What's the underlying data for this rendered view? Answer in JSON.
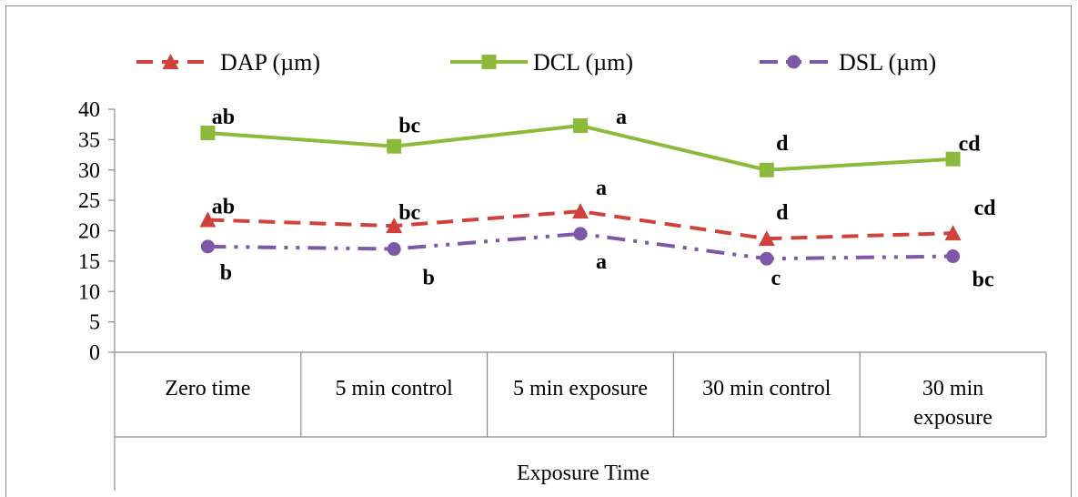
{
  "colors": {
    "dap": "#d0413b",
    "dcl": "#8cbb3c",
    "dsl": "#7e58a8",
    "axis": "#8c8c8c"
  },
  "chart_data": {
    "type": "line",
    "categories": [
      "Zero time",
      "5 min control",
      "5 min exposure",
      "30 min control",
      "30 min exposure"
    ],
    "category_lines": [
      [
        "Zero time"
      ],
      [
        "5 min control"
      ],
      [
        "5 min exposure"
      ],
      [
        "30 min control"
      ],
      [
        "30 min",
        "exposure"
      ]
    ],
    "xlabel": "Exposure Time",
    "ylabel": "",
    "ylim": [
      0,
      40
    ],
    "yticks": [
      0,
      5,
      10,
      15,
      20,
      25,
      30,
      35,
      40
    ],
    "grid": false,
    "legend_position": "top",
    "series": [
      {
        "key": "dap",
        "name": "DAP (µm)",
        "marker": "triangle",
        "line_style": "dashed",
        "values": [
          21.8,
          20.8,
          23.2,
          18.7,
          19.6
        ],
        "labels": [
          "ab",
          "bc",
          "a",
          "d",
          "cd"
        ]
      },
      {
        "key": "dcl",
        "name": "DCL (µm)",
        "marker": "square",
        "line_style": "solid",
        "values": [
          36.1,
          33.9,
          37.3,
          30.0,
          31.8
        ],
        "labels": [
          "ab",
          "bc",
          "a",
          "d",
          "cd"
        ]
      },
      {
        "key": "dsl",
        "name": "DSL (µm)",
        "marker": "circle",
        "line_style": "dash-dot-dot",
        "values": [
          17.4,
          17.0,
          19.5,
          15.4,
          15.8
        ],
        "labels": [
          "b",
          "b",
          "a",
          "c",
          "bc"
        ]
      }
    ]
  }
}
